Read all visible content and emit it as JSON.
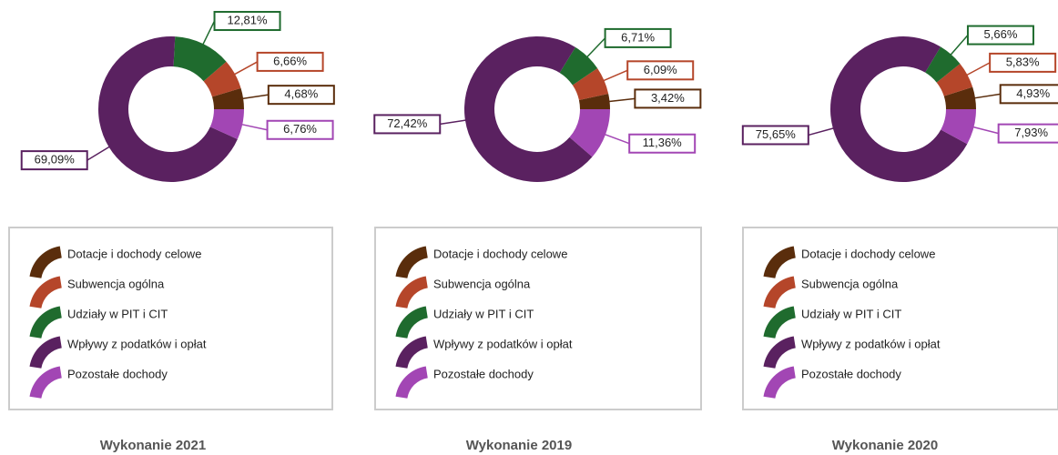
{
  "chart_data": [
    {
      "type": "pie",
      "title": "Wykonanie 2021",
      "categories": [
        "Dotacje i dochody celowe",
        "Subwencja ogólna",
        "Udziały w PIT i CIT",
        "Wpływy z podatków i opłat",
        "Pozostałe dochody"
      ],
      "values": [
        4.68,
        6.66,
        12.81,
        69.09,
        6.76
      ],
      "value_labels": [
        "4,68%",
        "6,66%",
        "12,81%",
        "69,09%",
        "6,76%"
      ],
      "colors": [
        "#5a2d0c",
        "#b5462a",
        "#1f6b2e",
        "#5a2160",
        "#a246b4"
      ]
    },
    {
      "type": "pie",
      "title": "Wykonanie 2019",
      "categories": [
        "Dotacje i dochody celowe",
        "Subwencja ogólna",
        "Udziały w PIT i CIT",
        "Wpływy z podatków i opłat",
        "Pozostałe dochody"
      ],
      "values": [
        3.42,
        6.09,
        6.71,
        72.42,
        11.36
      ],
      "value_labels": [
        "3,42%",
        "6,09%",
        "6,71%",
        "72,42%",
        "11,36%"
      ],
      "colors": [
        "#5a2d0c",
        "#b5462a",
        "#1f6b2e",
        "#5a2160",
        "#a246b4"
      ]
    },
    {
      "type": "pie",
      "title": "Wykonanie 2020",
      "categories": [
        "Dotacje i dochody celowe",
        "Subwencja ogólna",
        "Udziały w PIT i CIT",
        "Wpływy z podatków i opłat",
        "Pozostałe dochody"
      ],
      "values": [
        4.93,
        5.83,
        5.66,
        75.65,
        7.93
      ],
      "value_labels": [
        "4,93%",
        "5,83%",
        "5,66%",
        "75,65%",
        "7,93%"
      ],
      "colors": [
        "#5a2d0c",
        "#b5462a",
        "#1f6b2e",
        "#5a2160",
        "#a246b4"
      ]
    }
  ]
}
